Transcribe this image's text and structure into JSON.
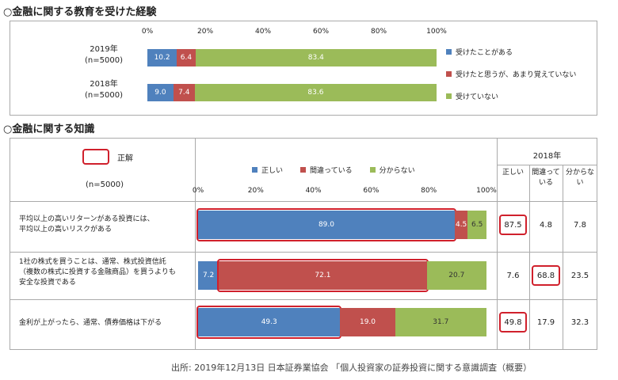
{
  "colors": {
    "blue": "#4f81bd",
    "red": "#c0504d",
    "green": "#9bbb59",
    "highlight": "#d0202c"
  },
  "section1": {
    "heading": "○金融に関する教育を受けた経験",
    "ticks": [
      "0%",
      "20%",
      "40%",
      "60%",
      "80%",
      "100%"
    ],
    "rows": [
      {
        "label1": "2019年",
        "label2": "(n=5000)"
      },
      {
        "label1": "2018年",
        "label2": "(n=5000)"
      }
    ],
    "legend": [
      "受けたことがある",
      "受けたと思うが、あまり覚えていない",
      "受けていない"
    ]
  },
  "section2": {
    "heading": "○金融に関する知識",
    "correct_label": "正解",
    "n_label": "(n=5000)",
    "ticks": [
      "0%",
      "20%",
      "40%",
      "60%",
      "80%",
      "100%"
    ],
    "legend": [
      "正しい",
      "間違っている",
      "分からない"
    ],
    "year_header": "2018年",
    "col_headers": [
      "正しい",
      "間違って\nいる",
      "分からな\nい"
    ],
    "questions": [
      {
        "text": "平均以上の高いリターンがある投資には、\n平均以上の高いリスクがある",
        "y2018": [
          "87.5",
          "4.8",
          "7.8"
        ]
      },
      {
        "text": "1社の株式を買うことは、通常、株式投資信託\n（複数の株式に投資する金融商品）を買うよりも\n安全な投資である",
        "y2018": [
          "7.6",
          "68.8",
          "23.5"
        ]
      },
      {
        "text": "金利が上がったら、通常、債券価格は下がる",
        "y2018": [
          "49.8",
          "17.9",
          "32.3"
        ]
      }
    ]
  },
  "source": "出所: 2019年12月13日 日本証券業協会 「個人投資家の証券投資に関する意識調査（概要）",
  "chart_data": [
    {
      "type": "bar",
      "title": "○金融に関する教育を受けた経験",
      "stacked": true,
      "orientation": "horizontal",
      "categories": [
        "2019年 (n=5000)",
        "2018年 (n=5000)"
      ],
      "xlim": [
        0,
        100
      ],
      "series": [
        {
          "name": "受けたことがある",
          "values": [
            10.2,
            9.0
          ]
        },
        {
          "name": "受けたと思うが、あまり覚えていない",
          "values": [
            6.4,
            7.4
          ]
        },
        {
          "name": "受けていない",
          "values": [
            83.4,
            83.6
          ]
        }
      ]
    },
    {
      "type": "bar",
      "title": "○金融に関する知識",
      "stacked": true,
      "orientation": "horizontal",
      "categories": [
        "平均以上の高いリターンがある投資には、平均以上の高いリスクがある",
        "1社の株式を買うことは、通常、株式投資信託（複数の株式に投資する金融商品）を買うよりも安全な投資である",
        "金利が上がったら、通常、債券価格は下がる"
      ],
      "xlim": [
        0,
        100
      ],
      "series": [
        {
          "name": "正しい",
          "values": [
            89.0,
            7.2,
            49.3
          ]
        },
        {
          "name": "間違っている",
          "values": [
            4.5,
            72.1,
            19.0
          ]
        },
        {
          "name": "分からない",
          "values": [
            6.5,
            20.7,
            31.7
          ]
        }
      ],
      "correct_answer": [
        "正しい",
        "間違っている",
        "正しい"
      ]
    }
  ]
}
